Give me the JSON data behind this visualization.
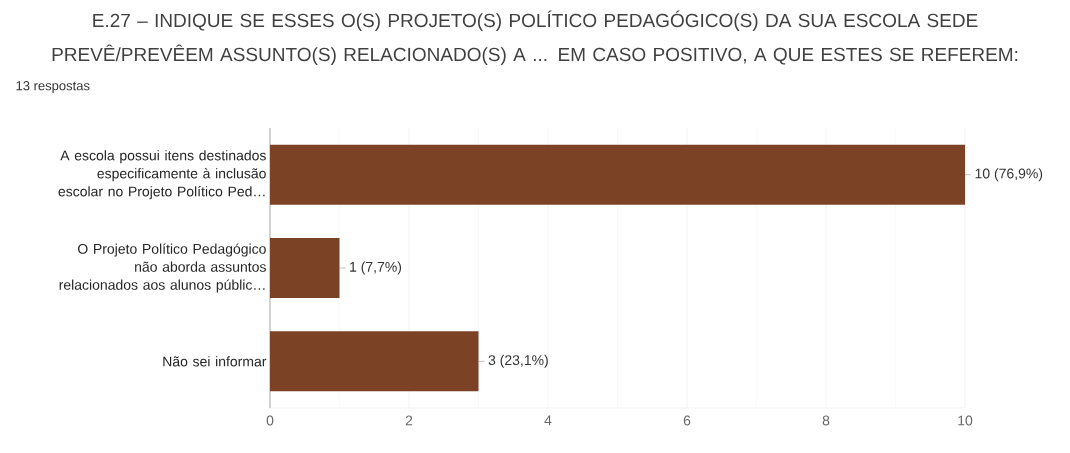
{
  "chart_data": {
    "type": "bar",
    "orientation": "horizontal",
    "title": "E.27 – INDIQUE SE ESSES O(S) PROJETO(S) POLÍTICO PEDAGÓGICO(S) DA SUA ESCOLA SEDE PREVÊ/PREVÊEM ASSUNTO(S) RELACIONADO(S) A ... EM CASO POSITIVO, A QUE ESTES SE REFEREM:",
    "subtitle": "13 respostas",
    "categories": [
      "A escola possui itens destinados especificamente à inclusão escolar no Projeto Político Ped…",
      "O Projeto Político Pedagógico não aborda assuntos relacionados aos alunos públic…",
      "Não sei informar"
    ],
    "values": [
      10,
      1,
      3
    ],
    "value_labels": [
      "10 (76,9%)",
      "1 (7,7%)",
      "3 (23,1%)"
    ],
    "color": "#7b4226",
    "xlim": [
      0,
      10
    ],
    "xticks": [
      0,
      2,
      4,
      6,
      8,
      10
    ],
    "grid": "x"
  }
}
